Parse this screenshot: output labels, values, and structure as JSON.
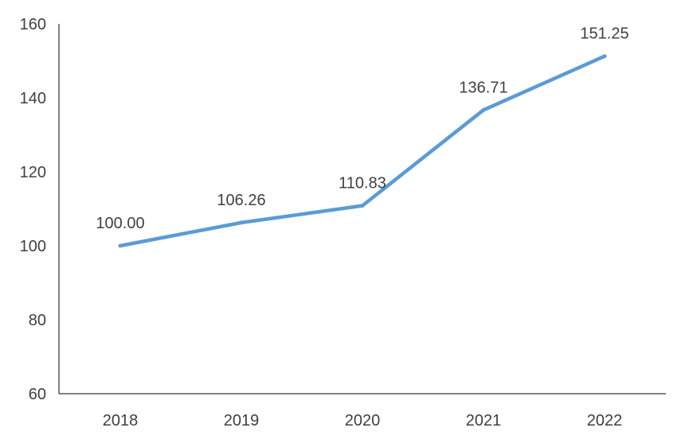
{
  "chart_data": {
    "type": "line",
    "categories": [
      "2018",
      "2019",
      "2020",
      "2021",
      "2022"
    ],
    "series": [
      {
        "values": [
          100.0,
          106.26,
          110.83,
          136.71,
          151.25
        ],
        "labels": [
          "100.00",
          "106.26",
          "110.83",
          "136.71",
          "151.25"
        ],
        "color": "#5B9BD5"
      }
    ],
    "ylim": [
      60,
      160
    ],
    "yticks": [
      60,
      80,
      100,
      120,
      140,
      160
    ],
    "grid": false,
    "title": "",
    "xlabel": "",
    "ylabel": ""
  }
}
